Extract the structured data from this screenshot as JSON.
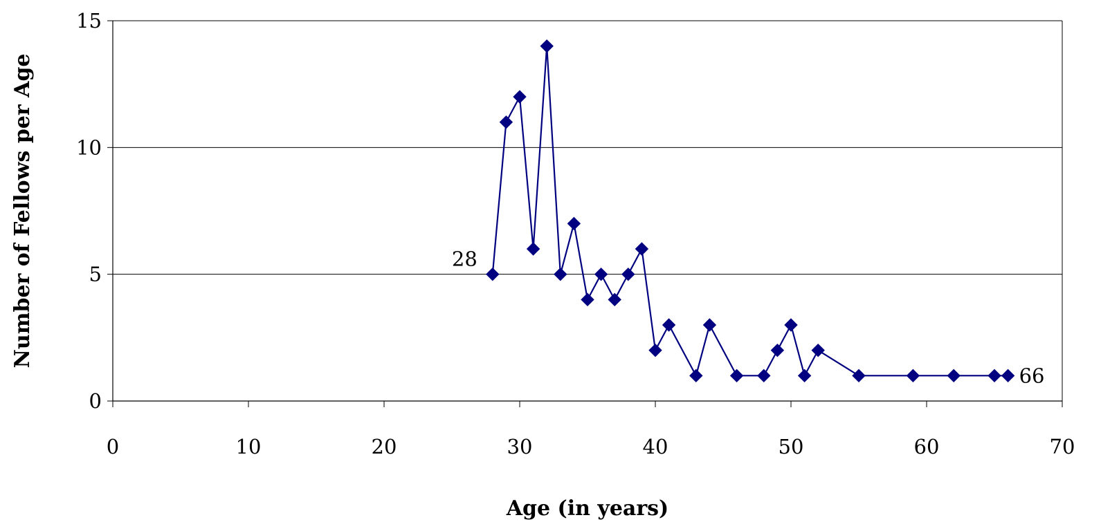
{
  "chart_data": {
    "type": "line",
    "title": "",
    "xlabel": "Age (in years)",
    "ylabel": "Number of Fellows per Age",
    "xlim": [
      0,
      70
    ],
    "ylim": [
      0,
      15
    ],
    "x_ticks": [
      "0",
      "10",
      "20",
      "30",
      "40",
      "50",
      "60",
      "70"
    ],
    "y_ticks": [
      "0",
      "5",
      "10",
      "15"
    ],
    "horizontal_grid": true,
    "legend": "none",
    "marker": "diamond",
    "series": [
      {
        "color": "#000080",
        "x": [
          28,
          29,
          30,
          31,
          32,
          33,
          34,
          35,
          36,
          37,
          38,
          39,
          40,
          41,
          43,
          44,
          46,
          48,
          49,
          50,
          51,
          52,
          55,
          59,
          62,
          65,
          66
        ],
        "y": [
          5,
          11,
          12,
          6,
          14,
          5,
          7,
          4,
          5,
          4,
          5,
          6,
          2,
          3,
          1,
          3,
          1,
          1,
          2,
          3,
          1,
          2,
          1,
          1,
          1,
          1,
          1
        ]
      }
    ],
    "annotations": [
      {
        "text": "28",
        "x": 28,
        "y": 5,
        "position": "left"
      },
      {
        "text": "66",
        "x": 66,
        "y": 1,
        "position": "right"
      }
    ]
  }
}
